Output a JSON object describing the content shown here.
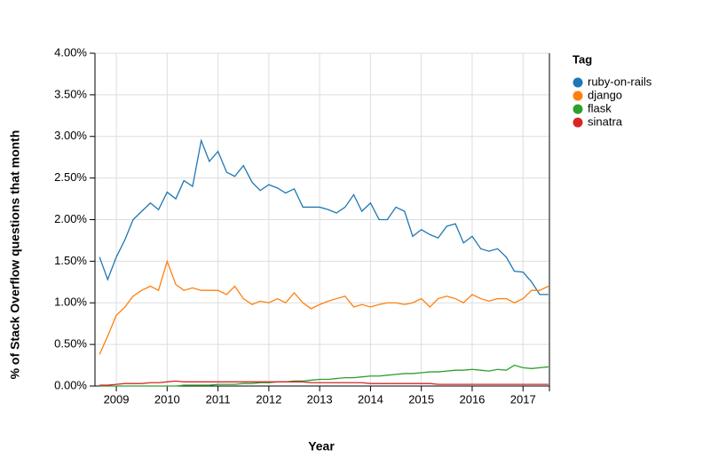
{
  "chart_data": {
    "type": "line",
    "x_label": "Year",
    "y_label": "% of Stack Overflow questions that month",
    "legend_title": "Tag",
    "legend_position": "right",
    "grid": true,
    "xlim": [
      2008.58,
      2017.52
    ],
    "xticks": [
      2009,
      2010,
      2011,
      2012,
      2013,
      2014,
      2015,
      2016,
      2017
    ],
    "ylim": [
      0,
      4
    ],
    "yticks": [
      {
        "value": 0,
        "label": "0.00%"
      },
      {
        "value": 0.5,
        "label": "0.50%"
      },
      {
        "value": 1,
        "label": "1.00%"
      },
      {
        "value": 1.5,
        "label": "1.50%"
      },
      {
        "value": 2,
        "label": "2.00%"
      },
      {
        "value": 2.5,
        "label": "2.50%"
      },
      {
        "value": 3,
        "label": "3.00%"
      },
      {
        "value": 3.5,
        "label": "3.50%"
      },
      {
        "value": 4,
        "label": "4.00%"
      }
    ],
    "x": [
      2008.67,
      2008.83,
      2009,
      2009.17,
      2009.33,
      2009.5,
      2009.67,
      2009.83,
      2010,
      2010.17,
      2010.33,
      2010.5,
      2010.67,
      2010.83,
      2011,
      2011.17,
      2011.33,
      2011.5,
      2011.67,
      2011.83,
      2012,
      2012.17,
      2012.33,
      2012.5,
      2012.67,
      2012.83,
      2013,
      2013.17,
      2013.33,
      2013.5,
      2013.67,
      2013.83,
      2014,
      2014.17,
      2014.33,
      2014.5,
      2014.67,
      2014.83,
      2015,
      2015.17,
      2015.33,
      2015.5,
      2015.67,
      2015.83,
      2016,
      2016.17,
      2016.33,
      2016.5,
      2016.67,
      2016.83,
      2017,
      2017.17,
      2017.33,
      2017.5
    ],
    "series": [
      {
        "name": "ruby-on-rails",
        "color": "#1f77b4",
        "values": [
          1.55,
          1.28,
          1.55,
          1.76,
          2.0,
          2.1,
          2.2,
          2.12,
          2.33,
          2.25,
          2.47,
          2.4,
          2.95,
          2.7,
          2.82,
          2.57,
          2.52,
          2.65,
          2.45,
          2.35,
          2.42,
          2.38,
          2.32,
          2.37,
          2.15,
          2.15,
          2.15,
          2.12,
          2.08,
          2.15,
          2.3,
          2.1,
          2.2,
          2.0,
          2.0,
          2.15,
          2.1,
          1.8,
          1.88,
          1.82,
          1.78,
          1.92,
          1.95,
          1.72,
          1.8,
          1.65,
          1.62,
          1.65,
          1.55,
          1.38,
          1.37,
          1.25,
          1.1,
          1.1
        ]
      },
      {
        "name": "django",
        "color": "#ff7f0e",
        "values": [
          0.38,
          0.6,
          0.85,
          0.95,
          1.08,
          1.15,
          1.2,
          1.15,
          1.5,
          1.22,
          1.15,
          1.18,
          1.15,
          1.15,
          1.15,
          1.1,
          1.2,
          1.05,
          0.98,
          1.02,
          1.0,
          1.05,
          1.0,
          1.12,
          1.0,
          0.93,
          0.98,
          1.02,
          1.05,
          1.08,
          0.95,
          0.98,
          0.95,
          0.98,
          1.0,
          1.0,
          0.98,
          1.0,
          1.05,
          0.95,
          1.05,
          1.08,
          1.05,
          1.0,
          1.1,
          1.05,
          1.02,
          1.05,
          1.05,
          1.0,
          1.05,
          1.15,
          1.15,
          1.2
        ]
      },
      {
        "name": "flask",
        "color": "#2ca02c",
        "values": [
          0,
          0,
          0,
          0,
          0,
          0,
          0,
          0,
          0,
          0,
          0.01,
          0.01,
          0.01,
          0.01,
          0.02,
          0.02,
          0.02,
          0.03,
          0.03,
          0.04,
          0.04,
          0.05,
          0.05,
          0.06,
          0.06,
          0.07,
          0.08,
          0.08,
          0.09,
          0.1,
          0.1,
          0.11,
          0.12,
          0.12,
          0.13,
          0.14,
          0.15,
          0.15,
          0.16,
          0.17,
          0.17,
          0.18,
          0.19,
          0.19,
          0.2,
          0.19,
          0.18,
          0.2,
          0.19,
          0.25,
          0.22,
          0.21,
          0.22,
          0.23
        ]
      },
      {
        "name": "sinatra",
        "color": "#d62728",
        "values": [
          0.01,
          0.01,
          0.02,
          0.03,
          0.03,
          0.03,
          0.04,
          0.04,
          0.05,
          0.06,
          0.05,
          0.05,
          0.05,
          0.05,
          0.05,
          0.05,
          0.05,
          0.05,
          0.05,
          0.05,
          0.05,
          0.05,
          0.05,
          0.05,
          0.05,
          0.04,
          0.04,
          0.04,
          0.04,
          0.04,
          0.04,
          0.04,
          0.03,
          0.03,
          0.03,
          0.03,
          0.03,
          0.03,
          0.03,
          0.03,
          0.02,
          0.02,
          0.02,
          0.02,
          0.02,
          0.02,
          0.02,
          0.02,
          0.02,
          0.02,
          0.02,
          0.02,
          0.02,
          0.02
        ]
      }
    ]
  }
}
